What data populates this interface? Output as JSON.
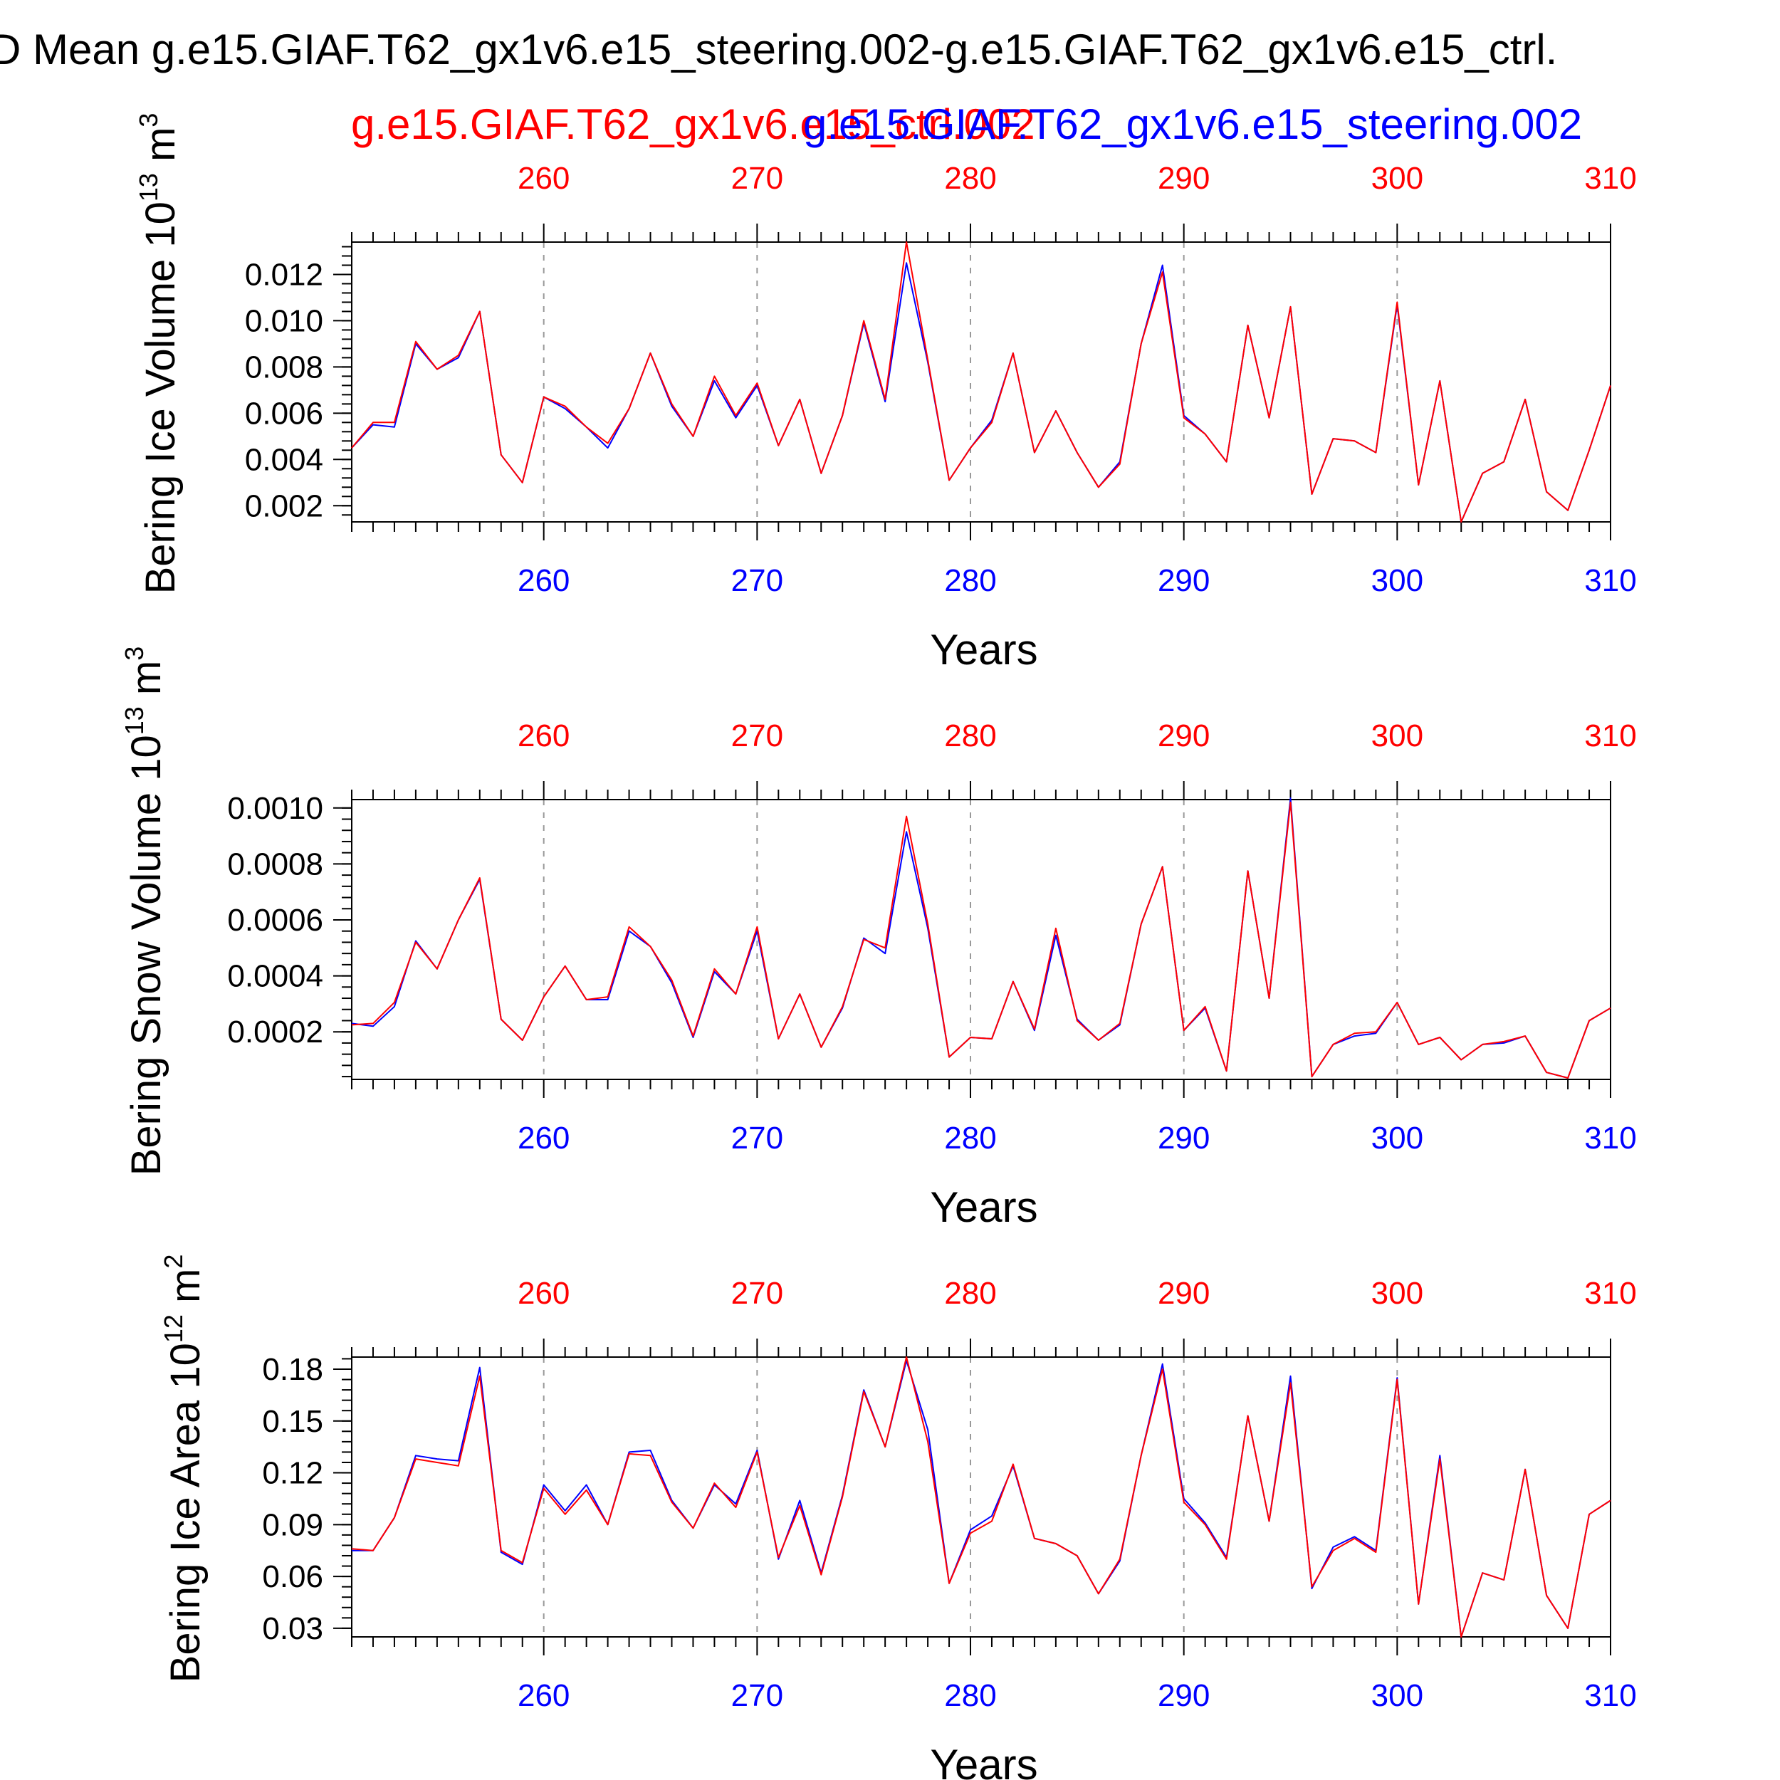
{
  "figure": {
    "title": "D Mean g.e15.GIAF.T62_gx1v6.e15_steering.002-g.e15.GIAF.T62_gx1v6.e15_ctrl.",
    "legend": [
      {
        "label": "g.e15.GIAF.T62_gx1v6.e15_ctrl.002",
        "color": "#ff0000"
      },
      {
        "label": "g.e15.GIAF.T62_gx1v6.e15_steering.002",
        "color": "#0000ff"
      }
    ],
    "top_axis_color": "#ff0000",
    "bottom_axis_color": "#0000ff",
    "text_color": "#000000"
  },
  "chart_data": [
    {
      "type": "line",
      "ylabel": "Bering Ice Volume 10^13 m^3",
      "ylabel_main": "Bering Ice Volume 10",
      "ylabel_exp": "13",
      "ylabel_unit": " m",
      "ylabel_unit_exp": "3",
      "xlabel": "Years",
      "xlim": [
        251,
        310
      ],
      "ylim": [
        0.0013,
        0.0134
      ],
      "x_ticks": [
        "260",
        "270",
        "280",
        "290",
        "300",
        "310"
      ],
      "y_ticks": [
        "0.002",
        "0.004",
        "0.006",
        "0.008",
        "0.010",
        "0.012"
      ],
      "y_minor_step": 0.0004,
      "grid": "vertical dashed at major x ticks",
      "x": [
        251,
        252,
        253,
        254,
        255,
        256,
        257,
        258,
        259,
        260,
        261,
        262,
        263,
        264,
        265,
        266,
        267,
        268,
        269,
        270,
        271,
        272,
        273,
        274,
        275,
        276,
        277,
        278,
        279,
        280,
        281,
        282,
        283,
        284,
        285,
        286,
        287,
        288,
        289,
        290,
        291,
        292,
        293,
        294,
        295,
        296,
        297,
        298,
        299,
        300,
        301,
        302,
        303,
        304,
        305,
        306,
        307,
        308,
        309,
        310
      ],
      "series": [
        {
          "name": "g.e15.GIAF.T62_gx1v6.e15_ctrl.002",
          "color": "#ff0000",
          "values": [
            0.0045,
            0.0056,
            0.0056,
            0.0091,
            0.0079,
            0.0085,
            0.0104,
            0.0042,
            0.003,
            0.0067,
            0.0063,
            0.0054,
            0.0047,
            0.0062,
            0.0086,
            0.0064,
            0.005,
            0.0076,
            0.0059,
            0.0073,
            0.0046,
            0.0066,
            0.0034,
            0.0059,
            0.01,
            0.0066,
            0.0134,
            0.0083,
            0.0031,
            0.0045,
            0.0056,
            0.0086,
            0.0043,
            0.0061,
            0.0043,
            0.0028,
            0.0038,
            0.009,
            0.0121,
            0.0058,
            0.0051,
            0.0039,
            0.0098,
            0.0058,
            0.0106,
            0.0025,
            0.0049,
            0.0048,
            0.0043,
            0.0108,
            0.0029,
            0.0074,
            0.0013,
            0.0034,
            0.0039,
            0.0066,
            0.0026,
            0.0018,
            0.0044,
            0.0072
          ]
        },
        {
          "name": "g.e15.GIAF.T62_gx1v6.e15_steering.002",
          "color": "#0000ff",
          "values": [
            0.0045,
            0.0055,
            0.0054,
            0.009,
            0.0079,
            0.0084,
            0.0104,
            0.0042,
            0.003,
            0.0067,
            0.0062,
            0.0054,
            0.0045,
            0.0062,
            0.0086,
            0.0063,
            0.005,
            0.0074,
            0.0058,
            0.0072,
            0.0046,
            0.0066,
            0.0034,
            0.0059,
            0.0099,
            0.0065,
            0.0125,
            0.0082,
            0.0031,
            0.0045,
            0.0057,
            0.0086,
            0.0043,
            0.0061,
            0.0043,
            0.0028,
            0.0039,
            0.009,
            0.0124,
            0.0059,
            0.0051,
            0.0039,
            0.0098,
            0.0058,
            0.0106,
            0.0025,
            0.0049,
            0.0048,
            0.0043,
            0.0107,
            0.0029,
            0.0074,
            0.0013,
            0.0034,
            0.0039,
            0.0066,
            0.0026,
            0.0018,
            0.0044,
            0.0072
          ]
        }
      ]
    },
    {
      "type": "line",
      "ylabel": "Bering Snow Volume 10^13 m^3",
      "ylabel_main": "Bering Snow Volume 10",
      "ylabel_exp": "13",
      "ylabel_unit": " m",
      "ylabel_unit_exp": "3",
      "xlabel": "Years",
      "xlim": [
        251,
        310
      ],
      "ylim": [
        3e-05,
        0.00103
      ],
      "x_ticks": [
        "260",
        "270",
        "280",
        "290",
        "300",
        "310"
      ],
      "y_ticks": [
        "0.0002",
        "0.0004",
        "0.0006",
        "0.0008",
        "0.0010"
      ],
      "y_minor_step": 4e-05,
      "grid": "vertical dashed at major x ticks",
      "x": [
        251,
        252,
        253,
        254,
        255,
        256,
        257,
        258,
        259,
        260,
        261,
        262,
        263,
        264,
        265,
        266,
        267,
        268,
        269,
        270,
        271,
        272,
        273,
        274,
        275,
        276,
        277,
        278,
        279,
        280,
        281,
        282,
        283,
        284,
        285,
        286,
        287,
        288,
        289,
        290,
        291,
        292,
        293,
        294,
        295,
        296,
        297,
        298,
        299,
        300,
        301,
        302,
        303,
        304,
        305,
        306,
        307,
        308,
        309,
        310
      ],
      "series": [
        {
          "name": "g.e15.GIAF.T62_gx1v6.e15_ctrl.002",
          "color": "#ff0000",
          "values": [
            0.000225,
            0.00023,
            0.000305,
            0.00052,
            0.000425,
            0.0006,
            0.00075,
            0.000245,
            0.00017,
            0.000325,
            0.000435,
            0.000315,
            0.000325,
            0.000575,
            0.000505,
            0.000385,
            0.000185,
            0.000425,
            0.000335,
            0.000575,
            0.000175,
            0.000335,
            0.000145,
            0.00029,
            0.00053,
            0.0005,
            0.00097,
            0.000585,
            0.00011,
            0.00018,
            0.000175,
            0.00038,
            0.00021,
            0.00057,
            0.00024,
            0.00017,
            0.00023,
            0.000585,
            0.00079,
            0.000205,
            0.00029,
            6e-05,
            0.000775,
            0.00032,
            0.00102,
            4e-05,
            0.000155,
            0.000195,
            0.0002,
            0.000305,
            0.000155,
            0.00018,
            0.0001,
            0.000155,
            0.000165,
            0.000185,
            5.5e-05,
            3.5e-05,
            0.00024,
            0.000285
          ]
        },
        {
          "name": "g.e15.GIAF.T62_gx1v6.e15_steering.002",
          "color": "#0000ff",
          "values": [
            0.00023,
            0.00022,
            0.00029,
            0.000525,
            0.000425,
            0.0006,
            0.000745,
            0.000245,
            0.00017,
            0.000325,
            0.000435,
            0.000315,
            0.000315,
            0.00056,
            0.000505,
            0.000375,
            0.00018,
            0.000415,
            0.000335,
            0.00056,
            0.000175,
            0.000335,
            0.000145,
            0.000285,
            0.000535,
            0.00048,
            0.000915,
            0.00057,
            0.00011,
            0.00018,
            0.000175,
            0.00038,
            0.000205,
            0.000545,
            0.000245,
            0.00017,
            0.000225,
            0.000585,
            0.00079,
            0.000205,
            0.000285,
            6e-05,
            0.000775,
            0.00032,
            0.001035,
            4e-05,
            0.000155,
            0.000185,
            0.000195,
            0.000305,
            0.000155,
            0.00018,
            0.0001,
            0.000155,
            0.00016,
            0.000185,
            5.5e-05,
            3.5e-05,
            0.00024,
            0.000285
          ]
        }
      ]
    },
    {
      "type": "line",
      "ylabel": "Bering Ice Area 10^12 m^2",
      "ylabel_main": "Bering Ice Area 10",
      "ylabel_exp": "12",
      "ylabel_unit": " m",
      "ylabel_unit_exp": "2",
      "xlabel": "Years",
      "xlim": [
        251,
        310
      ],
      "ylim": [
        0.025,
        0.187
      ],
      "x_ticks": [
        "260",
        "270",
        "280",
        "290",
        "300",
        "310"
      ],
      "y_ticks": [
        "0.03",
        "0.06",
        "0.09",
        "0.12",
        "0.15",
        "0.18"
      ],
      "y_minor_step": 0.006,
      "grid": "vertical dashed at major x ticks",
      "x": [
        251,
        252,
        253,
        254,
        255,
        256,
        257,
        258,
        259,
        260,
        261,
        262,
        263,
        264,
        265,
        266,
        267,
        268,
        269,
        270,
        271,
        272,
        273,
        274,
        275,
        276,
        277,
        278,
        279,
        280,
        281,
        282,
        283,
        284,
        285,
        286,
        287,
        288,
        289,
        290,
        291,
        292,
        293,
        294,
        295,
        296,
        297,
        298,
        299,
        300,
        301,
        302,
        303,
        304,
        305,
        306,
        307,
        308,
        309,
        310
      ],
      "series": [
        {
          "name": "g.e15.GIAF.T62_gx1v6.e15_ctrl.002",
          "color": "#ff0000",
          "values": [
            0.076,
            0.075,
            0.094,
            0.128,
            0.126,
            0.124,
            0.176,
            0.075,
            0.068,
            0.111,
            0.096,
            0.11,
            0.09,
            0.131,
            0.13,
            0.103,
            0.088,
            0.114,
            0.1,
            0.132,
            0.071,
            0.101,
            0.061,
            0.106,
            0.167,
            0.135,
            0.187,
            0.138,
            0.056,
            0.085,
            0.092,
            0.125,
            0.082,
            0.079,
            0.072,
            0.05,
            0.07,
            0.13,
            0.18,
            0.103,
            0.09,
            0.07,
            0.153,
            0.092,
            0.172,
            0.054,
            0.075,
            0.082,
            0.074,
            0.174,
            0.044,
            0.128,
            0.025,
            0.062,
            0.058,
            0.122,
            0.049,
            0.03,
            0.096,
            0.104
          ]
        },
        {
          "name": "g.e15.GIAF.T62_gx1v6.e15_steering.002",
          "color": "#0000ff",
          "values": [
            0.075,
            0.075,
            0.094,
            0.13,
            0.128,
            0.127,
            0.181,
            0.074,
            0.067,
            0.113,
            0.098,
            0.113,
            0.09,
            0.132,
            0.133,
            0.104,
            0.088,
            0.113,
            0.102,
            0.133,
            0.07,
            0.104,
            0.062,
            0.107,
            0.168,
            0.135,
            0.185,
            0.145,
            0.056,
            0.087,
            0.095,
            0.124,
            0.082,
            0.079,
            0.072,
            0.05,
            0.069,
            0.13,
            0.183,
            0.105,
            0.091,
            0.071,
            0.153,
            0.092,
            0.176,
            0.053,
            0.077,
            0.083,
            0.075,
            0.175,
            0.044,
            0.13,
            0.025,
            0.062,
            0.058,
            0.122,
            0.049,
            0.03,
            0.096,
            0.104
          ]
        }
      ]
    }
  ]
}
